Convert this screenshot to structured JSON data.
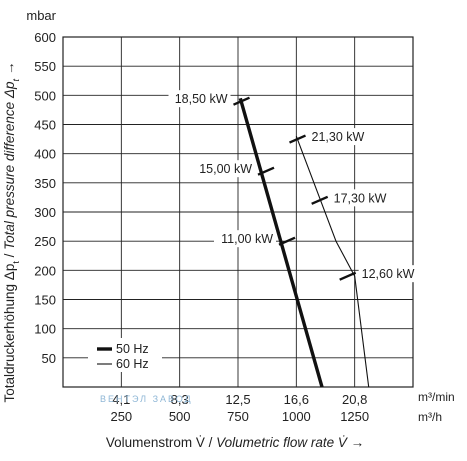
{
  "chart_data": {
    "type": "line",
    "ylabel_unit": "mbar",
    "ylabel": "Totaldruckerhöhung Δp",
    "ylabel_sub": "t",
    "ylabel_sep": " / ",
    "ylabel_en": "Total pressure difference Δp",
    "ylabel_en_sub": "t",
    "ylabel_arrow": "→",
    "xlabel": "Volumenstrom V̇ / ",
    "xlabel_en": "Volumetric flow rate V̇ →",
    "ylim": [
      0,
      600
    ],
    "yticks": [
      "50",
      "100",
      "150",
      "200",
      "250",
      "300",
      "350",
      "400",
      "450",
      "500",
      "550",
      "600"
    ],
    "xlim": [
      0,
      1500
    ],
    "xticks_m3h": [
      "250",
      "500",
      "750",
      "1000",
      "1250"
    ],
    "xticks_m3min": [
      "4,1",
      "8,3",
      "12,5",
      "16,6",
      "20,8"
    ],
    "x_unit_top": "m³/min",
    "x_unit_bottom": "m³/h",
    "grid": true,
    "legend_position": "bottom-left",
    "series": [
      {
        "name": "50 Hz",
        "color": "#111111",
        "weight": "thick",
        "points": [
          [
            760,
            495
          ],
          [
            1110,
            0
          ]
        ],
        "power_marks": [
          {
            "x": 765,
            "y": 490,
            "label": "18,50 kW"
          },
          {
            "x": 870,
            "y": 370,
            "label": "15,00 kW"
          },
          {
            "x": 960,
            "y": 250,
            "label": "11,00 kW"
          }
        ]
      },
      {
        "name": "60 Hz",
        "color": "#111111",
        "weight": "thin",
        "points": [
          [
            1000,
            430
          ],
          [
            1170,
            250
          ],
          [
            1250,
            190
          ],
          [
            1310,
            0
          ]
        ],
        "power_marks": [
          {
            "x": 1005,
            "y": 425,
            "label": "21,30 kW"
          },
          {
            "x": 1100,
            "y": 320,
            "label": "17,30 kW"
          },
          {
            "x": 1220,
            "y": 190,
            "label": "12,60 kW"
          }
        ]
      }
    ],
    "watermark": "ВЕНТЭЛ ЗАВОД"
  }
}
